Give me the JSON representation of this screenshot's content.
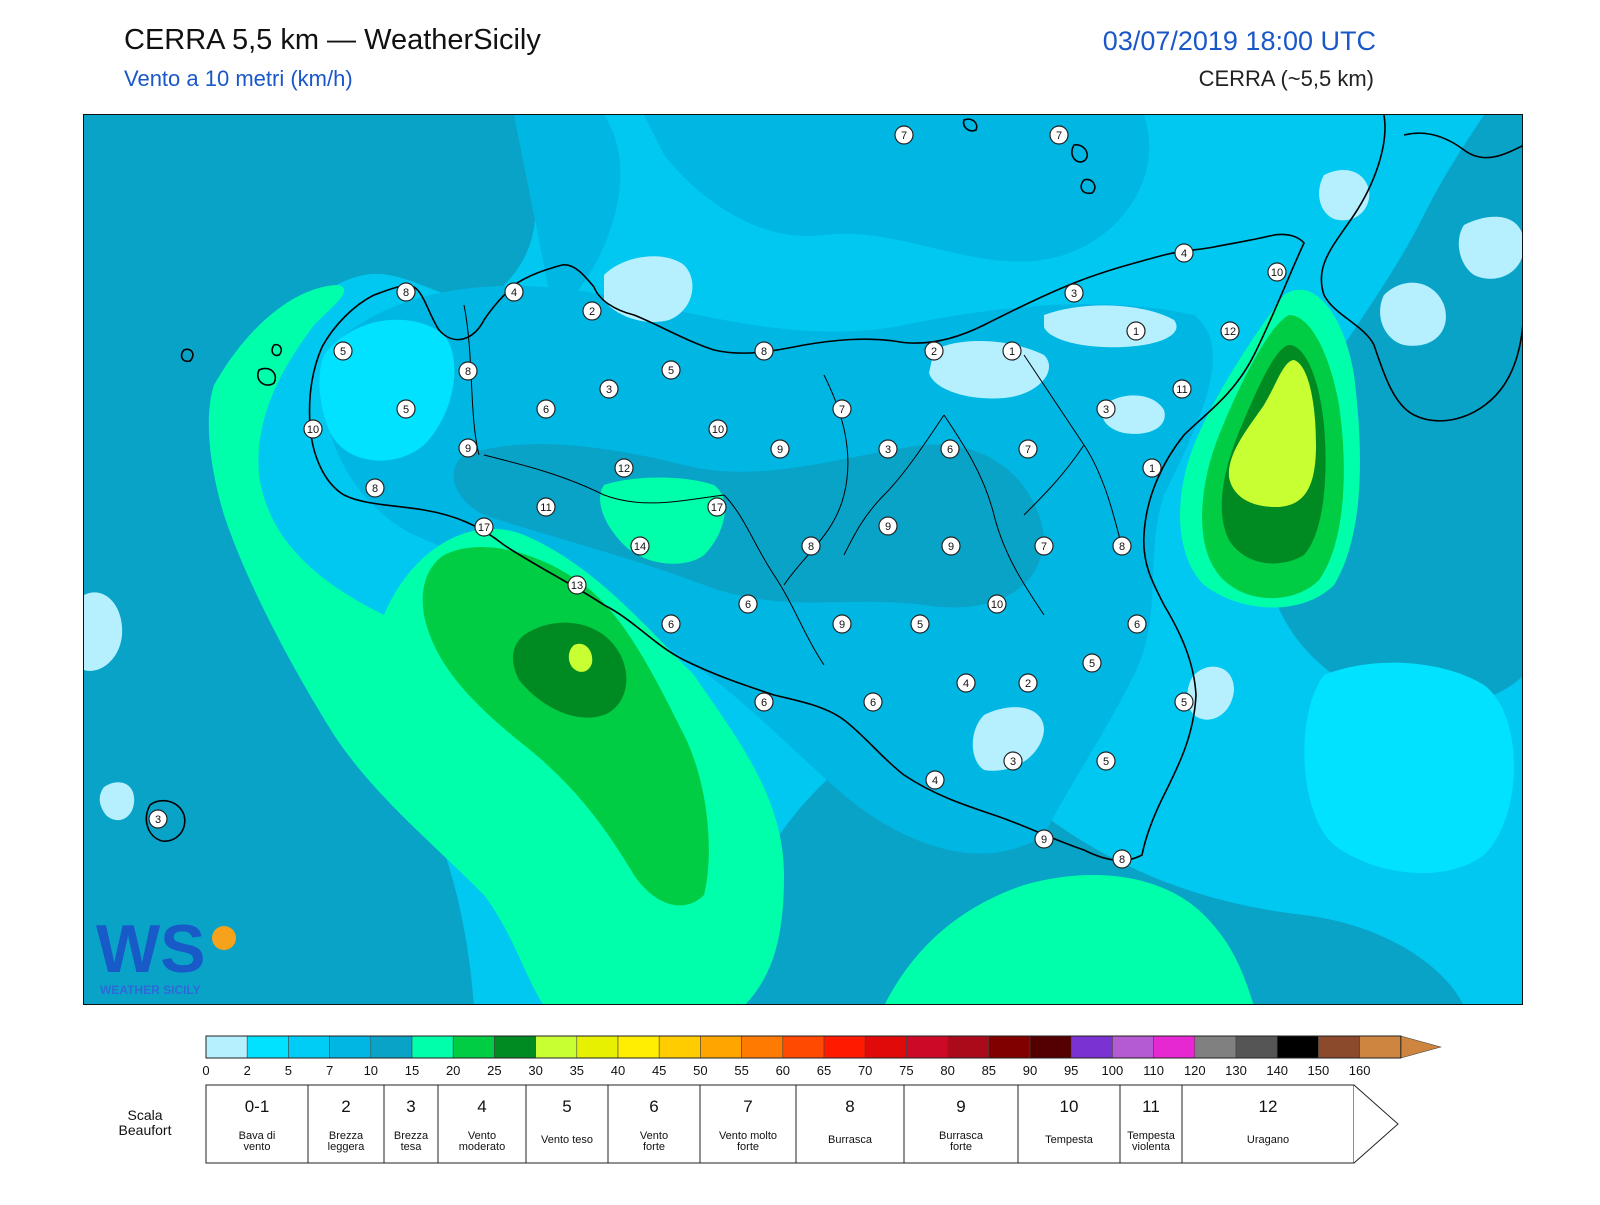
{
  "header": {
    "title": "CERRA 5,5 km — WeatherSicily",
    "subtitle": "Vento a 10 metri (km/h)",
    "datetime": "03/07/2019 18:00 UTC",
    "model": "CERRA (~5,5 km)"
  },
  "logo": {
    "text": "WEATHER SICILY",
    "mark": "WS"
  },
  "colors": {
    "sea_base": "#00c8f0",
    "outline": "#000000"
  },
  "station_values": [
    {
      "id": "s1",
      "value": "7"
    },
    {
      "id": "s2",
      "value": "7"
    },
    {
      "id": "s3",
      "value": "4"
    },
    {
      "id": "s4",
      "value": "10"
    },
    {
      "id": "s5",
      "value": "8"
    },
    {
      "id": "s6",
      "value": "4"
    },
    {
      "id": "s7",
      "value": "2"
    },
    {
      "id": "s8",
      "value": "3"
    },
    {
      "id": "s9",
      "value": "1"
    },
    {
      "id": "s10",
      "value": "12"
    },
    {
      "id": "s11",
      "value": "5"
    },
    {
      "id": "s12",
      "value": "8"
    },
    {
      "id": "s13",
      "value": "5"
    },
    {
      "id": "s14",
      "value": "3"
    },
    {
      "id": "s15",
      "value": "8"
    },
    {
      "id": "s16",
      "value": "2"
    },
    {
      "id": "s17",
      "value": "1"
    },
    {
      "id": "s18",
      "value": "11"
    },
    {
      "id": "s19",
      "value": "10"
    },
    {
      "id": "s20",
      "value": "5"
    },
    {
      "id": "s21",
      "value": "6"
    },
    {
      "id": "s22",
      "value": "7"
    },
    {
      "id": "s23",
      "value": "3"
    },
    {
      "id": "s24",
      "value": "10"
    },
    {
      "id": "s25",
      "value": "9"
    },
    {
      "id": "s26",
      "value": "9"
    },
    {
      "id": "s27",
      "value": "3"
    },
    {
      "id": "s28",
      "value": "6"
    },
    {
      "id": "s29",
      "value": "7"
    },
    {
      "id": "s30",
      "value": "12"
    },
    {
      "id": "s31",
      "value": "1"
    },
    {
      "id": "s32",
      "value": "8"
    },
    {
      "id": "s33",
      "value": "11"
    },
    {
      "id": "s34",
      "value": "17"
    },
    {
      "id": "s35",
      "value": "17"
    },
    {
      "id": "s36",
      "value": "9"
    },
    {
      "id": "s37",
      "value": "8"
    },
    {
      "id": "s38",
      "value": "14"
    },
    {
      "id": "s39",
      "value": "9"
    },
    {
      "id": "s40",
      "value": "7"
    },
    {
      "id": "s41",
      "value": "8"
    },
    {
      "id": "s42",
      "value": "13"
    },
    {
      "id": "s43",
      "value": "6"
    },
    {
      "id": "s44",
      "value": "10"
    },
    {
      "id": "s45",
      "value": "6"
    },
    {
      "id": "s46",
      "value": "9"
    },
    {
      "id": "s47",
      "value": "5"
    },
    {
      "id": "s48",
      "value": "6"
    },
    {
      "id": "s49",
      "value": "5"
    },
    {
      "id": "s50",
      "value": "6"
    },
    {
      "id": "s51",
      "value": "4"
    },
    {
      "id": "s52",
      "value": "2"
    },
    {
      "id": "s53",
      "value": "6"
    },
    {
      "id": "s54",
      "value": "5"
    },
    {
      "id": "s55",
      "value": "3"
    },
    {
      "id": "s56",
      "value": "5"
    },
    {
      "id": "s57",
      "value": "4"
    },
    {
      "id": "s58",
      "value": "9"
    },
    {
      "id": "s59",
      "value": "8"
    },
    {
      "id": "s60",
      "value": "3"
    }
  ],
  "colorbar": {
    "ticks": [
      "0",
      "2",
      "5",
      "7",
      "10",
      "15",
      "20",
      "25",
      "30",
      "35",
      "40",
      "45",
      "50",
      "55",
      "60",
      "65",
      "70",
      "75",
      "80",
      "85",
      "90",
      "95",
      "100",
      "110",
      "120",
      "130",
      "140",
      "150",
      "160"
    ],
    "colors": [
      "#b6f0ff",
      "#00e2ff",
      "#00cdf5",
      "#00b7e4",
      "#0aa3c8",
      "#00ffaa",
      "#00cc44",
      "#008a22",
      "#c8ff32",
      "#e6f000",
      "#ffee00",
      "#ffcc00",
      "#ffa500",
      "#ff7a00",
      "#ff4a00",
      "#ff1a00",
      "#e00a0a",
      "#cc0a28",
      "#aa0a1a",
      "#800000",
      "#550000",
      "#7a32d2",
      "#b45ad2",
      "#e628d2",
      "#808080",
      "#555555",
      "#000000",
      "#8b4a2b",
      "#cd853f"
    ]
  },
  "beaufort": {
    "label": "Scala Beaufort",
    "classes": [
      {
        "num": "0-1",
        "name": "Bava di vento"
      },
      {
        "num": "2",
        "name": "Brezza leggera"
      },
      {
        "num": "3",
        "name": "Brezza tesa"
      },
      {
        "num": "4",
        "name": "Vento moderato"
      },
      {
        "num": "5",
        "name": "Vento teso"
      },
      {
        "num": "6",
        "name": "Vento forte"
      },
      {
        "num": "7",
        "name": "Vento molto forte"
      },
      {
        "num": "8",
        "name": "Burrasca"
      },
      {
        "num": "9",
        "name": "Burrasca forte"
      },
      {
        "num": "10",
        "name": "Tempesta"
      },
      {
        "num": "11",
        "name": "Tempesta violenta"
      },
      {
        "num": "12",
        "name": "Uragano"
      }
    ]
  }
}
